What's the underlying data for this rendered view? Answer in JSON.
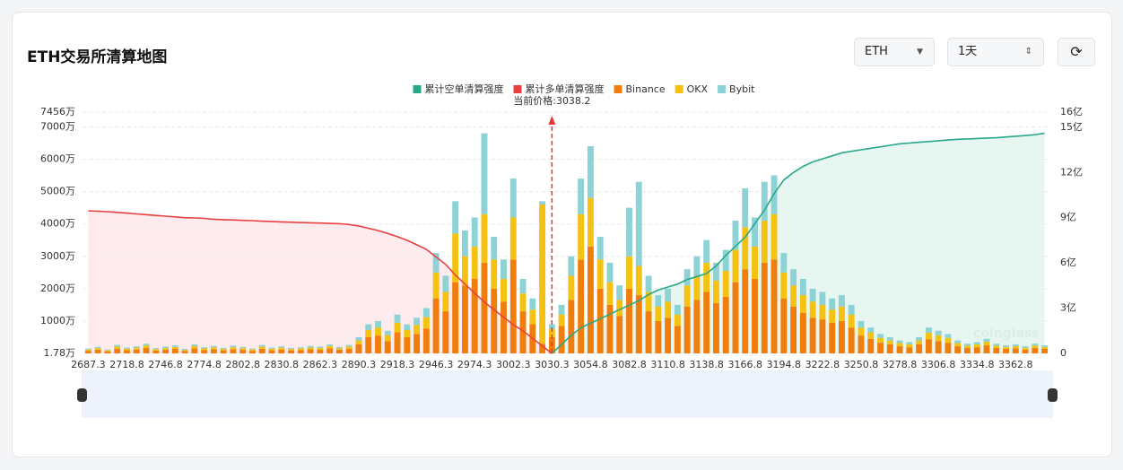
{
  "header": {
    "title": "ETH交易所清算地图",
    "coin": "ETH",
    "period": "1天",
    "watermark": "coinglass"
  },
  "chart_data": {
    "type": "bar",
    "stacked": true,
    "annotation": "当前价格:3038.2",
    "categories": [
      "2687.3",
      null,
      null,
      null,
      "2718.8",
      null,
      null,
      null,
      "2746.8",
      null,
      null,
      null,
      "2774.8",
      null,
      null,
      null,
      "2802.8",
      null,
      null,
      null,
      "2830.8",
      null,
      null,
      null,
      "2862.3",
      null,
      null,
      null,
      "2890.3",
      null,
      null,
      null,
      "2918.3",
      null,
      null,
      null,
      "2946.3",
      null,
      null,
      null,
      "2974.3",
      null,
      null,
      null,
      "3002.3",
      null,
      null,
      null,
      "3030.3",
      null,
      null,
      null,
      "3054.8",
      null,
      null,
      null,
      "3082.8",
      null,
      null,
      null,
      "3110.8",
      null,
      null,
      null,
      "3138.8",
      null,
      null,
      null,
      "3166.8",
      null,
      null,
      null,
      "3194.8",
      null,
      null,
      null,
      "3222.8",
      null,
      null,
      null,
      "3250.8",
      null,
      null,
      null,
      "3278.8",
      null,
      null,
      null,
      "3306.8",
      null,
      null,
      null,
      "3334.8",
      null,
      null,
      null,
      "3362.8",
      null,
      null,
      null
    ],
    "ylim": [
      1.78,
      7456
    ],
    "yticks": [
      {
        "value": 1.78,
        "label": "1.78万"
      },
      {
        "value": 1000,
        "label": "1000万"
      },
      {
        "value": 2000,
        "label": "2000万"
      },
      {
        "value": 3000,
        "label": "3000万"
      },
      {
        "value": 4000,
        "label": "4000万"
      },
      {
        "value": 5000,
        "label": "5000万"
      },
      {
        "value": 6000,
        "label": "6000万"
      },
      {
        "value": 7000,
        "label": "7000万"
      },
      {
        "value": 7456,
        "label": "7456万"
      }
    ],
    "y2lim": [
      0,
      16
    ],
    "y2ticks": [
      0,
      {
        "value": 3,
        "label": "3亿"
      },
      {
        "value": 6,
        "label": "6亿"
      },
      {
        "value": 9,
        "label": "9亿"
      },
      {
        "value": 12,
        "label": "12亿"
      },
      {
        "value": 15,
        "label": "15亿"
      },
      {
        "value": 16,
        "label": "16亿"
      }
    ],
    "grid": true,
    "series": [
      {
        "name": "累计空单清算强度",
        "type": "line",
        "axis": "y2",
        "color": "#26a889",
        "area": "#e3f5ef",
        "values": [
          null,
          null,
          null,
          null,
          null,
          null,
          null,
          null,
          null,
          null,
          null,
          null,
          null,
          null,
          null,
          null,
          null,
          null,
          null,
          null,
          null,
          null,
          null,
          null,
          null,
          null,
          null,
          null,
          null,
          null,
          null,
          null,
          null,
          null,
          null,
          null,
          null,
          null,
          null,
          null,
          null,
          null,
          null,
          null,
          null,
          null,
          null,
          null,
          0,
          0.6,
          1.2,
          1.7,
          2.0,
          2.3,
          2.6,
          2.9,
          3.2,
          3.5,
          3.9,
          4.2,
          4.4,
          4.6,
          4.9,
          5.1,
          5.3,
          5.8,
          6.5,
          7.1,
          7.7,
          8.6,
          9.5,
          10.6,
          11.5,
          12.0,
          12.4,
          12.7,
          12.9,
          13.1,
          13.3,
          13.4,
          13.5,
          13.6,
          13.7,
          13.8,
          13.9,
          13.95,
          14.0,
          14.05,
          14.1,
          14.15,
          14.2,
          14.22,
          14.25,
          14.28,
          14.3,
          14.35,
          14.4,
          14.45,
          14.5,
          14.6
        ]
      },
      {
        "name": "累计多单清算强度",
        "type": "line",
        "axis": "y2",
        "color": "#e84040",
        "area": "#fde8ea",
        "values": [
          9.45,
          9.43,
          9.4,
          9.35,
          9.3,
          9.25,
          9.2,
          9.15,
          9.1,
          9.05,
          9.0,
          8.98,
          8.95,
          8.9,
          8.87,
          8.85,
          8.82,
          8.8,
          8.77,
          8.75,
          8.72,
          8.7,
          8.68,
          8.66,
          8.64,
          8.62,
          8.6,
          8.55,
          8.45,
          8.3,
          8.15,
          7.95,
          7.75,
          7.5,
          7.2,
          6.9,
          6.4,
          5.9,
          5.2,
          4.6,
          4.0,
          3.4,
          2.9,
          2.4,
          1.9,
          1.5,
          1.0,
          0.5,
          0,
          null,
          null,
          null,
          null,
          null,
          null,
          null,
          null,
          null,
          null,
          null,
          null,
          null,
          null,
          null,
          null,
          null,
          null,
          null,
          null,
          null,
          null,
          null,
          null,
          null,
          null,
          null,
          null,
          null,
          null,
          null,
          null,
          null,
          null,
          null,
          null,
          null,
          null,
          null,
          null,
          null,
          null,
          null,
          null,
          null,
          null,
          null,
          null,
          null,
          null,
          null
        ]
      },
      {
        "name": "Binance",
        "type": "bar",
        "color": "#f07d0c",
        "values": [
          80,
          110,
          65,
          145,
          100,
          120,
          165,
          90,
          115,
          140,
          75,
          155,
          105,
          125,
          95,
          130,
          110,
          80,
          145,
          100,
          120,
          95,
          105,
          125,
          115,
          155,
          110,
          145,
          280,
          500,
          550,
          380,
          650,
          500,
          600,
          770,
          1700,
          1300,
          2200,
          2100,
          2300,
          2800,
          2000,
          1600,
          2900,
          1300,
          900,
          300,
          500,
          850,
          1650,
          2900,
          3300,
          2000,
          1500,
          1150,
          2000,
          1800,
          1300,
          1000,
          1100,
          850,
          1450,
          1650,
          1900,
          1550,
          1750,
          2200,
          2600,
          2300,
          2800,
          2900,
          1700,
          1450,
          1250,
          1100,
          1050,
          950,
          1000,
          800,
          550,
          450,
          330,
          280,
          220,
          190,
          280,
          440,
          380,
          330,
          220,
          165,
          190,
          250,
          165,
          140,
          155,
          120,
          165,
          140
        ]
      },
      {
        "name": "OKX",
        "type": "bar",
        "color": "#f5c211",
        "values": [
          40,
          50,
          30,
          65,
          45,
          55,
          75,
          40,
          50,
          60,
          35,
          70,
          50,
          60,
          40,
          60,
          50,
          40,
          65,
          45,
          55,
          40,
          50,
          55,
          55,
          70,
          50,
          65,
          120,
          220,
          250,
          180,
          300,
          220,
          280,
          350,
          800,
          600,
          1500,
          900,
          1000,
          1500,
          900,
          700,
          1300,
          550,
          450,
          4300,
          250,
          350,
          750,
          1400,
          1500,
          900,
          700,
          500,
          1000,
          900,
          600,
          450,
          500,
          350,
          650,
          750,
          900,
          700,
          800,
          1000,
          1300,
          1000,
          1300,
          1400,
          800,
          650,
          550,
          500,
          450,
          400,
          450,
          400,
          250,
          200,
          150,
          120,
          100,
          90,
          120,
          200,
          180,
          150,
          100,
          75,
          90,
          110,
          75,
          60,
          70,
          55,
          75,
          60
        ]
      },
      {
        "name": "Bybit",
        "type": "bar",
        "color": "#8dd3d6",
        "values": [
          30,
          40,
          25,
          50,
          35,
          45,
          60,
          30,
          45,
          50,
          30,
          55,
          35,
          45,
          35,
          50,
          40,
          30,
          50,
          35,
          45,
          35,
          35,
          50,
          40,
          55,
          40,
          50,
          100,
          180,
          200,
          140,
          250,
          180,
          220,
          280,
          600,
          500,
          1000,
          800,
          900,
          2500,
          700,
          600,
          1200,
          450,
          350,
          100,
          150,
          300,
          600,
          1100,
          1600,
          700,
          600,
          450,
          1500,
          2600,
          500,
          350,
          400,
          300,
          500,
          600,
          700,
          550,
          650,
          900,
          1200,
          900,
          1200,
          1200,
          600,
          500,
          500,
          400,
          400,
          350,
          350,
          300,
          200,
          150,
          120,
          100,
          80,
          70,
          100,
          160,
          140,
          120,
          80,
          60,
          70,
          90,
          60,
          50,
          55,
          45,
          60,
          50
        ]
      }
    ]
  }
}
